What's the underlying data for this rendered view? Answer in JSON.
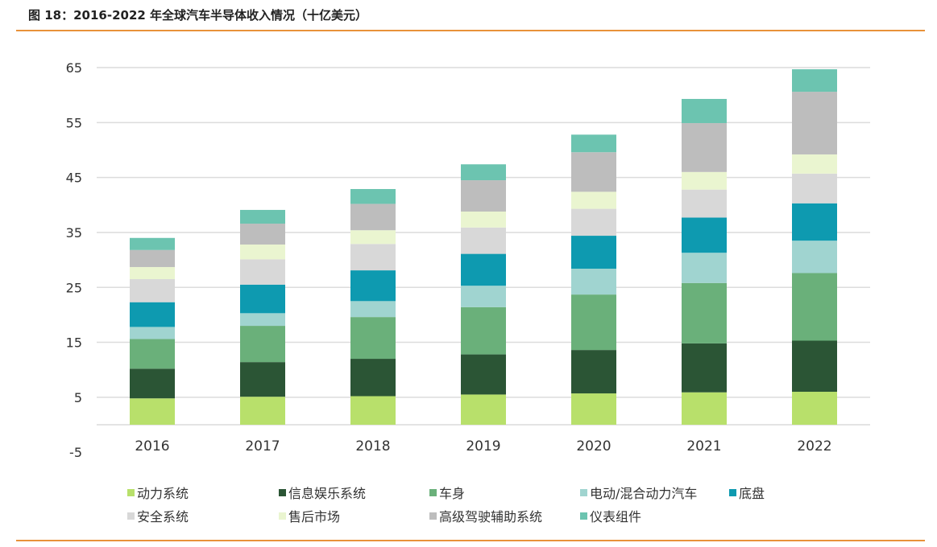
{
  "title": "图 18：2016-2022 年全球汽车半导体收入情况（十亿美元）",
  "chart_data": {
    "type": "bar",
    "stacked": true,
    "title": "图 18：2016-2022 年全球汽车半导体收入情况（十亿美元）",
    "xlabel": "",
    "ylabel": "",
    "ylim": [
      -5,
      65
    ],
    "yticks": [
      65,
      55,
      45,
      35,
      25,
      15,
      5,
      -5
    ],
    "grid": true,
    "legend_position": "bottom",
    "categories": [
      "2016",
      "2017",
      "2018",
      "2019",
      "2020",
      "2021",
      "2022"
    ],
    "series": [
      {
        "name": "动力系统",
        "color": "#b8e06b",
        "values": [
          4.8,
          5.1,
          5.2,
          5.5,
          5.7,
          5.9,
          6.0
        ]
      },
      {
        "name": "信息娱乐系统",
        "color": "#2b5535",
        "values": [
          5.4,
          6.3,
          6.8,
          7.3,
          7.9,
          8.9,
          9.3
        ]
      },
      {
        "name": "车身",
        "color": "#6ab07a",
        "values": [
          5.4,
          6.6,
          7.6,
          8.6,
          10.1,
          11.0,
          12.3
        ]
      },
      {
        "name": "电动/混合动力汽车",
        "color": "#a0d4d0",
        "values": [
          2.2,
          2.3,
          2.9,
          3.9,
          4.7,
          5.5,
          5.9
        ]
      },
      {
        "name": "底盘",
        "color": "#0e9ab0",
        "values": [
          4.5,
          5.2,
          5.6,
          5.8,
          6.0,
          6.4,
          6.8
        ]
      },
      {
        "name": "安全系统",
        "color": "#d8d8d8",
        "values": [
          4.2,
          4.6,
          4.8,
          4.8,
          4.9,
          5.1,
          5.4
        ]
      },
      {
        "name": "售后市场",
        "color": "#eaf5d0",
        "values": [
          2.2,
          2.7,
          2.5,
          2.9,
          3.1,
          3.2,
          3.5
        ]
      },
      {
        "name": "高级驾驶辅助系统",
        "color": "#bdbdbd",
        "values": [
          3.1,
          3.8,
          4.8,
          5.7,
          7.2,
          8.9,
          11.4
        ]
      },
      {
        "name": "仪表组件",
        "color": "#6cc4b0",
        "values": [
          2.2,
          2.5,
          2.7,
          2.9,
          3.2,
          4.4,
          4.1
        ]
      }
    ]
  }
}
